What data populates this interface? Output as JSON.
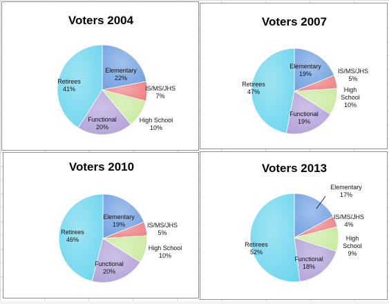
{
  "colors": {
    "Elementary": "#6f9fe0",
    "IS/MS/JHS": "#ee7c80",
    "High School": "#c7ea9b",
    "Functional": "#b29fd9",
    "Retirees": "#6bd5ee"
  },
  "chart_data": [
    {
      "type": "pie",
      "title": "Voters 2004",
      "labels": [
        "Elementary",
        "IS/MS/JHS",
        "High School",
        "Functional",
        "Retirees"
      ],
      "values": [
        22,
        7,
        10,
        20,
        41
      ],
      "value_labels": [
        "22%",
        "7%",
        "10%",
        "20%",
        "41%"
      ]
    },
    {
      "type": "pie",
      "title": "Voters 2007",
      "labels": [
        "Elementary",
        "IS/MS/JHS",
        "High School",
        "Functional",
        "Retirees"
      ],
      "values": [
        19,
        5,
        10,
        19,
        47
      ],
      "value_labels": [
        "19%",
        "5%",
        "10%",
        "19%",
        "47%"
      ]
    },
    {
      "type": "pie",
      "title": "Voters 2010",
      "labels": [
        "Elementary",
        "IS/MS/JHS",
        "High School",
        "Functional",
        "Retirees"
      ],
      "values": [
        19,
        5,
        10,
        20,
        46
      ],
      "value_labels": [
        "19%",
        "5%",
        "10%",
        "20%",
        "46%"
      ]
    },
    {
      "type": "pie",
      "title": "Voters 2013",
      "labels": [
        "Elementary",
        "IS/MS/JHS",
        "High School",
        "Functional",
        "Retirees"
      ],
      "values": [
        17,
        4,
        9,
        18,
        52
      ],
      "value_labels": [
        "17%",
        "4%",
        "9%",
        "18%",
        "52%"
      ]
    }
  ]
}
